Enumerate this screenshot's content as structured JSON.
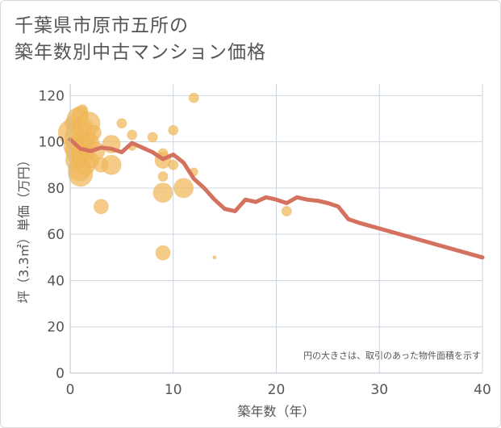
{
  "title_lines": [
    "千葉県市原市五所の",
    "築年数別中古マンション価格"
  ],
  "chart_data": {
    "type": "scatter",
    "xlabel": "築年数（年）",
    "ylabel": "坪（3.3㎡）単価（万円）",
    "xlim": [
      0,
      40
    ],
    "ylim": [
      0,
      125
    ],
    "xticks": [
      0,
      10,
      20,
      30,
      40
    ],
    "yticks": [
      0,
      20,
      40,
      60,
      80,
      100,
      120
    ],
    "grid": true,
    "note": "円の大きさは、取引のあった物件面積を示す",
    "colors": {
      "bubble": "#f0b95a",
      "line": "#d4725f",
      "grid": "#cdd6de",
      "plot_bg": "#ffffff"
    },
    "bubbles": [
      {
        "x": 0.1,
        "y": 104,
        "s": 16
      },
      {
        "x": 0.3,
        "y": 108,
        "s": 10
      },
      {
        "x": 0.4,
        "y": 98,
        "s": 13
      },
      {
        "x": 0.5,
        "y": 92,
        "s": 12
      },
      {
        "x": 0.6,
        "y": 100,
        "s": 9
      },
      {
        "x": 0.7,
        "y": 110,
        "s": 13
      },
      {
        "x": 0.8,
        "y": 96,
        "s": 16
      },
      {
        "x": 0.9,
        "y": 88,
        "s": 14
      },
      {
        "x": 1.0,
        "y": 112,
        "s": 10
      },
      {
        "x": 1.0,
        "y": 102,
        "s": 19
      },
      {
        "x": 1.0,
        "y": 86,
        "s": 15
      },
      {
        "x": 1.1,
        "y": 94,
        "s": 11
      },
      {
        "x": 1.2,
        "y": 114,
        "s": 6
      },
      {
        "x": 1.3,
        "y": 106,
        "s": 12
      },
      {
        "x": 1.4,
        "y": 98,
        "s": 10
      },
      {
        "x": 1.5,
        "y": 90,
        "s": 12
      },
      {
        "x": 1.6,
        "y": 101,
        "s": 8
      },
      {
        "x": 1.7,
        "y": 95,
        "s": 9
      },
      {
        "x": 1.8,
        "y": 108,
        "s": 14
      },
      {
        "x": 2.0,
        "y": 100,
        "s": 10
      },
      {
        "x": 2.1,
        "y": 92,
        "s": 9
      },
      {
        "x": 2.3,
        "y": 104,
        "s": 9
      },
      {
        "x": 2.5,
        "y": 96,
        "s": 11
      },
      {
        "x": 3.0,
        "y": 90,
        "s": 9
      },
      {
        "x": 3.0,
        "y": 72,
        "s": 9
      },
      {
        "x": 4.0,
        "y": 99,
        "s": 11
      },
      {
        "x": 4.0,
        "y": 90,
        "s": 12
      },
      {
        "x": 5.0,
        "y": 108,
        "s": 6
      },
      {
        "x": 6.0,
        "y": 103,
        "s": 6
      },
      {
        "x": 6.0,
        "y": 98,
        "s": 5
      },
      {
        "x": 8.0,
        "y": 102,
        "s": 6
      },
      {
        "x": 9.0,
        "y": 95,
        "s": 6
      },
      {
        "x": 9.0,
        "y": 92,
        "s": 10
      },
      {
        "x": 9.0,
        "y": 85,
        "s": 6
      },
      {
        "x": 9.0,
        "y": 78,
        "s": 12
      },
      {
        "x": 9.0,
        "y": 52,
        "s": 9
      },
      {
        "x": 10.0,
        "y": 105,
        "s": 6
      },
      {
        "x": 10.0,
        "y": 90,
        "s": 6
      },
      {
        "x": 11.0,
        "y": 80,
        "s": 12
      },
      {
        "x": 12.0,
        "y": 119,
        "s": 6
      },
      {
        "x": 12.0,
        "y": 87,
        "s": 5
      },
      {
        "x": 14.0,
        "y": 50,
        "s": 2
      },
      {
        "x": 21.0,
        "y": 70,
        "s": 6
      }
    ],
    "line": {
      "x": [
        0,
        1,
        2,
        3,
        4,
        5,
        6,
        7,
        8,
        9,
        10,
        11,
        12,
        13,
        14,
        15,
        16,
        17,
        18,
        19,
        20,
        21,
        22,
        23,
        24,
        25,
        26,
        27,
        28,
        40
      ],
      "y": [
        101,
        97,
        96,
        97.5,
        97,
        95.5,
        99.5,
        97.5,
        95.5,
        92.5,
        94.5,
        91,
        84,
        80,
        75,
        71,
        70,
        75,
        74,
        76,
        75,
        73.5,
        76,
        75,
        74.5,
        73.5,
        72,
        66.5,
        65,
        50
      ]
    }
  }
}
